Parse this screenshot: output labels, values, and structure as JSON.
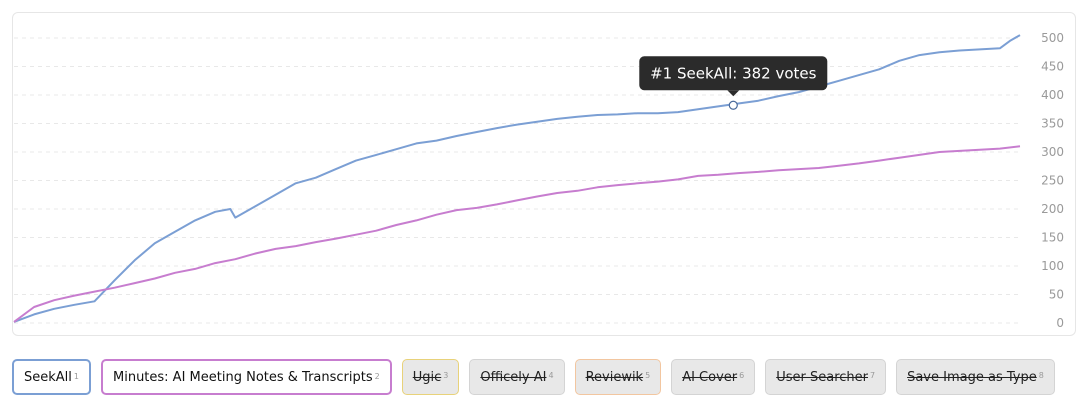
{
  "chart_data": {
    "type": "line",
    "ylim": [
      0,
      500
    ],
    "yticks": [
      "0",
      "50",
      "100",
      "150",
      "200",
      "250",
      "300",
      "350",
      "400",
      "450",
      "500"
    ],
    "grid": true,
    "series": [
      {
        "name": "SeekAll",
        "color": "#7b9fd4",
        "x": [
          0,
          0.02,
          0.04,
          0.06,
          0.08,
          0.1,
          0.12,
          0.14,
          0.16,
          0.18,
          0.2,
          0.215,
          0.22,
          0.24,
          0.26,
          0.28,
          0.3,
          0.32,
          0.34,
          0.36,
          0.38,
          0.4,
          0.42,
          0.44,
          0.46,
          0.48,
          0.5,
          0.52,
          0.54,
          0.56,
          0.58,
          0.6,
          0.62,
          0.64,
          0.66,
          0.68,
          0.7,
          0.72,
          0.74,
          0.76,
          0.78,
          0.8,
          0.82,
          0.84,
          0.86,
          0.88,
          0.9,
          0.92,
          0.94,
          0.96,
          0.98,
          0.99,
          1.0
        ],
        "values": [
          2,
          15,
          25,
          32,
          38,
          75,
          110,
          140,
          160,
          180,
          195,
          200,
          185,
          205,
          225,
          245,
          255,
          270,
          285,
          295,
          305,
          315,
          320,
          328,
          335,
          342,
          348,
          353,
          358,
          362,
          365,
          366,
          368,
          368,
          370,
          375,
          380,
          385,
          390,
          398,
          405,
          415,
          425,
          435,
          445,
          460,
          470,
          475,
          478,
          480,
          482,
          495,
          505
        ]
      },
      {
        "name": "Minutes: AI Meeting Notes & Transcripts",
        "color": "#c77dcf",
        "x": [
          0,
          0.02,
          0.04,
          0.06,
          0.08,
          0.1,
          0.12,
          0.14,
          0.16,
          0.18,
          0.2,
          0.22,
          0.24,
          0.26,
          0.28,
          0.3,
          0.32,
          0.34,
          0.36,
          0.38,
          0.4,
          0.42,
          0.44,
          0.46,
          0.48,
          0.5,
          0.52,
          0.54,
          0.56,
          0.58,
          0.6,
          0.62,
          0.64,
          0.66,
          0.68,
          0.7,
          0.72,
          0.74,
          0.76,
          0.78,
          0.8,
          0.82,
          0.84,
          0.86,
          0.88,
          0.9,
          0.92,
          0.94,
          0.96,
          0.98,
          1.0
        ],
        "values": [
          2,
          28,
          40,
          48,
          55,
          62,
          70,
          78,
          88,
          95,
          105,
          112,
          122,
          130,
          135,
          142,
          148,
          155,
          162,
          172,
          180,
          190,
          198,
          202,
          208,
          215,
          222,
          228,
          232,
          238,
          242,
          245,
          248,
          252,
          258,
          260,
          263,
          265,
          268,
          270,
          272,
          276,
          280,
          285,
          290,
          295,
          300,
          302,
          304,
          306,
          310
        ]
      }
    ],
    "tooltip": {
      "text": "#1 SeekAll: 382 votes",
      "series": "SeekAll",
      "x": 0.715,
      "value": 382
    }
  },
  "legend": [
    {
      "label": "SeekAll",
      "rank": "1",
      "color": "#7b9fd4",
      "active": true
    },
    {
      "label": "Minutes: AI Meeting Notes & Transcripts",
      "rank": "2",
      "color": "#c77dcf",
      "active": true
    },
    {
      "label": "Ugic",
      "rank": "3",
      "color": "#e8d27a",
      "active": false
    },
    {
      "label": "Officely AI",
      "rank": "4",
      "color": "#d4d4d4",
      "active": false
    },
    {
      "label": "Reviewik",
      "rank": "5",
      "color": "#f2c6a0",
      "active": false
    },
    {
      "label": "AI Cover",
      "rank": "6",
      "color": "#d4d4d4",
      "active": false
    },
    {
      "label": "User Searcher",
      "rank": "7",
      "color": "#d4d4d4",
      "active": false
    },
    {
      "label": "Save Image as Type",
      "rank": "8",
      "color": "#d4d4d4",
      "active": false
    }
  ]
}
